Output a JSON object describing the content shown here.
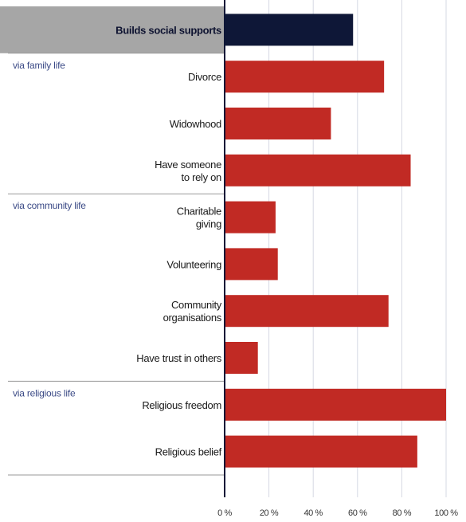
{
  "chart_data": {
    "type": "bar",
    "orientation": "horizontal",
    "xlim": [
      0,
      100
    ],
    "x_ticks": [
      "0 %",
      "20 %",
      "40 %",
      "60 %",
      "80 %",
      "100 %"
    ],
    "grid": true,
    "header": {
      "label": "Builds social supports",
      "value": 58,
      "color": "#0e1737"
    },
    "groups": [
      {
        "label": "via family life",
        "items": [
          {
            "label": [
              "Divorce"
            ],
            "value": 72
          },
          {
            "label": [
              "Widowhood"
            ],
            "value": 48
          },
          {
            "label": [
              "Have someone",
              "to rely on"
            ],
            "value": 84
          }
        ]
      },
      {
        "label": "via community life",
        "items": [
          {
            "label": [
              "Charitable",
              "giving"
            ],
            "value": 23
          },
          {
            "label": [
              "Volunteering"
            ],
            "value": 24
          },
          {
            "label": [
              "Community",
              "organisations"
            ],
            "value": 74
          },
          {
            "label": [
              "Have trust in others"
            ],
            "value": 15
          }
        ]
      },
      {
        "label": "via religious life",
        "items": [
          {
            "label": [
              "Religious freedom"
            ],
            "value": 100
          },
          {
            "label": [
              "Religious belief"
            ],
            "value": 87
          }
        ]
      }
    ],
    "bar_color": "#c12a24",
    "header_band_color": "#a6a6a6",
    "axis_color": "#0e1737",
    "grid_color": "#d6d9e3"
  }
}
